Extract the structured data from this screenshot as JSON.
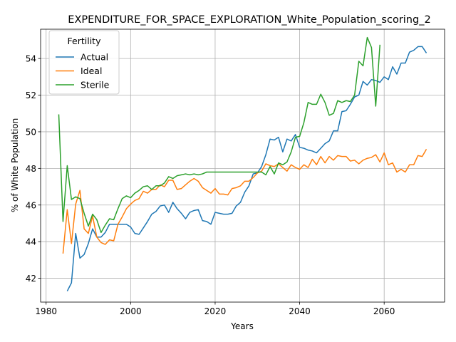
{
  "chart_data": {
    "type": "line",
    "title": "EXPENDITURE_FOR_SPACE_EXPLORATION_White_Population_scoring_2",
    "xlabel": "Years",
    "ylabel": "% of White Population",
    "xlim": [
      1978.7,
      2074.3
    ],
    "ylim": [
      40.7,
      55.6
    ],
    "xticks": [
      1980,
      2000,
      2020,
      2040,
      2060
    ],
    "yticks": [
      42,
      44,
      46,
      48,
      50,
      52,
      54
    ],
    "grid": true,
    "legend": {
      "title": "Fertility",
      "placement": "top-left"
    },
    "series": [
      {
        "name": "Actual",
        "color": "#1f77b4",
        "x": [
          1985,
          1986,
          1987,
          1988,
          1989,
          1990,
          1991,
          1992,
          1993,
          1994,
          1995,
          1996,
          1997,
          1998,
          1999,
          2000,
          2001,
          2002,
          2003,
          2004,
          2005,
          2006,
          2007,
          2008,
          2009,
          2010,
          2011,
          2012,
          2013,
          2014,
          2015,
          2016,
          2017,
          2018,
          2019,
          2020,
          2021,
          2022,
          2023,
          2024,
          2025,
          2026,
          2027,
          2028,
          2029,
          2030,
          2031,
          2032,
          2033,
          2034,
          2035,
          2036,
          2037,
          2038,
          2039,
          2040,
          2041,
          2042,
          2043,
          2044,
          2045,
          2046,
          2047,
          2048,
          2049,
          2050,
          2051,
          2052,
          2053,
          2054,
          2055,
          2056,
          2057,
          2058,
          2059,
          2060,
          2061,
          2062,
          2063,
          2064,
          2065,
          2066,
          2067,
          2068,
          2069,
          2070
        ],
        "y": [
          41.3,
          41.75,
          44.45,
          43.1,
          43.3,
          43.9,
          44.7,
          44.25,
          44.25,
          44.5,
          44.95,
          44.95,
          44.95,
          44.95,
          44.95,
          44.8,
          44.45,
          44.4,
          44.75,
          45.1,
          45.5,
          45.65,
          45.95,
          46.0,
          45.6,
          46.15,
          45.8,
          45.55,
          45.25,
          45.6,
          45.7,
          45.75,
          45.15,
          45.1,
          44.95,
          45.6,
          45.55,
          45.5,
          45.5,
          45.55,
          45.95,
          46.15,
          46.7,
          47.05,
          47.7,
          47.75,
          48.1,
          48.75,
          49.6,
          49.55,
          49.7,
          48.9,
          49.6,
          49.5,
          49.85,
          49.15,
          49.1,
          49.0,
          48.95,
          48.85,
          49.1,
          49.35,
          49.5,
          50.05,
          50.05,
          51.1,
          51.15,
          51.5,
          51.9,
          52.0,
          52.75,
          52.55,
          52.85,
          52.8,
          52.7,
          53.0,
          52.85,
          53.55,
          53.15,
          53.75,
          53.75,
          54.35,
          54.45,
          54.65,
          54.65,
          54.3
        ]
      },
      {
        "name": "Ideal",
        "color": "#ff7f0e",
        "x": [
          1984,
          1985,
          1986,
          1987,
          1988,
          1989,
          1990,
          1991,
          1992,
          1993,
          1994,
          1995,
          1996,
          1997,
          1998,
          1999,
          2000,
          2001,
          2002,
          2003,
          2004,
          2005,
          2006,
          2007,
          2008,
          2009,
          2010,
          2011,
          2012,
          2013,
          2014,
          2015,
          2016,
          2017,
          2018,
          2019,
          2020,
          2021,
          2022,
          2023,
          2024,
          2025,
          2026,
          2027,
          2028,
          2029,
          2030,
          2031,
          2032,
          2033,
          2034,
          2035,
          2036,
          2037,
          2038,
          2039,
          2040,
          2041,
          2042,
          2043,
          2044,
          2045,
          2046,
          2047,
          2048,
          2049,
          2050,
          2051,
          2052,
          2053,
          2054,
          2055,
          2056,
          2057,
          2058,
          2059,
          2060,
          2061,
          2062,
          2063,
          2064,
          2065,
          2066,
          2067,
          2068,
          2069,
          2070
        ],
        "y": [
          43.35,
          45.75,
          43.9,
          46.05,
          46.8,
          44.7,
          44.45,
          45.4,
          44.25,
          43.95,
          43.85,
          44.1,
          44.05,
          44.95,
          45.35,
          45.8,
          46.05,
          46.25,
          46.35,
          46.75,
          46.65,
          46.85,
          46.85,
          47.1,
          47.0,
          47.35,
          47.35,
          46.85,
          46.9,
          47.1,
          47.3,
          47.45,
          47.3,
          46.95,
          46.8,
          46.65,
          46.9,
          46.6,
          46.6,
          46.55,
          46.9,
          46.95,
          47.05,
          47.3,
          47.3,
          47.5,
          47.75,
          47.85,
          48.25,
          48.15,
          48.1,
          48.25,
          48.05,
          47.85,
          48.2,
          48.05,
          47.95,
          48.2,
          48.05,
          48.5,
          48.2,
          48.65,
          48.3,
          48.65,
          48.45,
          48.7,
          48.65,
          48.65,
          48.4,
          48.45,
          48.25,
          48.45,
          48.55,
          48.6,
          48.75,
          48.35,
          48.85,
          48.2,
          48.3,
          47.8,
          47.95,
          47.8,
          48.2,
          48.2,
          48.7,
          48.65,
          49.05
        ]
      },
      {
        "name": "Sterile",
        "color": "#2ca02c",
        "x": [
          1983,
          1984,
          1985,
          1986,
          1987,
          1988,
          1989,
          1990,
          1991,
          1992,
          1993,
          1994,
          1995,
          1996,
          1997,
          1998,
          1999,
          2000,
          2001,
          2002,
          2003,
          2004,
          2005,
          2006,
          2007,
          2008,
          2009,
          2010,
          2011,
          2012,
          2013,
          2014,
          2015,
          2016,
          2017,
          2018,
          2019,
          2020,
          2021,
          2022,
          2023,
          2024,
          2025,
          2026,
          2027,
          2028,
          2029,
          2030,
          2031,
          2032,
          2033,
          2034,
          2035,
          2036,
          2037,
          2038,
          2039,
          2040,
          2041,
          2042,
          2043,
          2044,
          2045,
          2046,
          2047,
          2048,
          2049,
          2050,
          2051,
          2052,
          2053,
          2054,
          2055,
          2056,
          2057,
          2058,
          2059
        ],
        "y": [
          50.95,
          45.1,
          48.15,
          46.3,
          46.45,
          46.35,
          45.55,
          44.85,
          45.5,
          45.2,
          44.5,
          44.9,
          45.25,
          45.2,
          45.8,
          46.35,
          46.5,
          46.4,
          46.65,
          46.8,
          47.0,
          47.05,
          46.85,
          47.05,
          47.05,
          47.2,
          47.55,
          47.45,
          47.6,
          47.65,
          47.7,
          47.65,
          47.7,
          47.65,
          47.7,
          47.8,
          47.8,
          47.8,
          47.8,
          47.8,
          47.8,
          47.8,
          47.8,
          47.8,
          47.8,
          47.8,
          47.8,
          47.8,
          47.8,
          47.65,
          48.1,
          47.7,
          48.3,
          48.2,
          48.35,
          48.9,
          49.7,
          49.75,
          50.5,
          51.6,
          51.5,
          51.5,
          52.05,
          51.6,
          50.9,
          51.0,
          51.7,
          51.6,
          51.7,
          51.65,
          52.0,
          53.85,
          53.6,
          55.15,
          54.6,
          51.4,
          54.75
        ]
      }
    ]
  }
}
